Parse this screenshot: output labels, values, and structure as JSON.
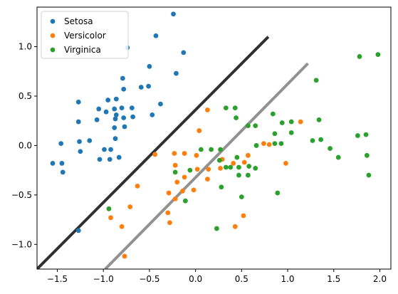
{
  "chart_data": {
    "type": "scatter",
    "title": "",
    "xlabel": "",
    "ylabel": "",
    "xlim": [
      -1.72,
      2.12
    ],
    "ylim": [
      -1.25,
      1.4
    ],
    "xticks": [
      "−1.5",
      "−1.0",
      "−0.5",
      "0.0",
      "0.5",
      "1.0",
      "1.5",
      "2.0"
    ],
    "xtick_values": [
      -1.5,
      -1.0,
      -0.5,
      0.0,
      0.5,
      1.0,
      1.5,
      2.0
    ],
    "yticks": [
      "−1.0",
      "−0.5",
      "0.0",
      "0.5",
      "1.0"
    ],
    "ytick_values": [
      -1.0,
      -0.5,
      0.0,
      0.5,
      1.0
    ],
    "grid": false,
    "legend_position": "top-left",
    "series": [
      {
        "name": "Setosa",
        "color": "#1f77b4",
        "points": [
          [
            -0.24,
            1.33
          ],
          [
            -0.43,
            1.11
          ],
          [
            -0.74,
            0.99
          ],
          [
            -0.13,
            0.94
          ],
          [
            -0.5,
            0.8
          ],
          [
            -0.21,
            0.73
          ],
          [
            -0.79,
            0.68
          ],
          [
            -0.95,
            0.46
          ],
          [
            -0.86,
            0.47
          ],
          [
            -0.59,
            0.59
          ],
          [
            -0.51,
            0.6
          ],
          [
            -0.78,
            0.57
          ],
          [
            -1.05,
            0.37
          ],
          [
            -0.88,
            0.37
          ],
          [
            -0.8,
            0.38
          ],
          [
            -0.69,
            0.38
          ],
          [
            -0.38,
            0.42
          ],
          [
            -0.97,
            0.34
          ],
          [
            -0.47,
            0.31
          ],
          [
            -1.27,
            0.44
          ],
          [
            -0.86,
            0.31
          ],
          [
            -0.78,
            0.28
          ],
          [
            -0.68,
            0.29
          ],
          [
            -1.27,
            0.24
          ],
          [
            -1.07,
            0.26
          ],
          [
            -0.87,
            0.27
          ],
          [
            -0.88,
            0.18
          ],
          [
            -0.77,
            0.19
          ],
          [
            -0.87,
            0.07
          ],
          [
            -1.26,
            0.04
          ],
          [
            -1.15,
            0.05
          ],
          [
            -1.46,
            0.02
          ],
          [
            -0.99,
            -0.04
          ],
          [
            -0.92,
            -0.04
          ],
          [
            -1.25,
            -0.06
          ],
          [
            -1.04,
            -0.14
          ],
          [
            -0.93,
            -0.14
          ],
          [
            -0.83,
            -0.12
          ],
          [
            -1.55,
            -0.18
          ],
          [
            -1.45,
            -0.18
          ],
          [
            -1.44,
            -0.27
          ],
          [
            -1.27,
            -0.86
          ]
        ]
      },
      {
        "name": "Versicolor",
        "color": "#ff7f0e",
        "points": [
          [
            0.13,
            0.36
          ],
          [
            1.14,
            0.24
          ],
          [
            0.04,
            0.15
          ],
          [
            0.8,
            0.01
          ],
          [
            0.74,
            0.02
          ],
          [
            -0.44,
            -0.09
          ],
          [
            -0.23,
            -0.08
          ],
          [
            -0.12,
            -0.08
          ],
          [
            0.01,
            -0.1
          ],
          [
            0.29,
            -0.14
          ],
          [
            0.53,
            -0.17
          ],
          [
            0.41,
            -0.18
          ],
          [
            0.57,
            -0.1
          ],
          [
            -0.22,
            -0.2
          ],
          [
            0.02,
            -0.24
          ],
          [
            0.14,
            -0.24
          ],
          [
            0.27,
            -0.23
          ],
          [
            0.98,
            -0.18
          ],
          [
            -0.12,
            -0.32
          ],
          [
            0.13,
            -0.34
          ],
          [
            -0.2,
            -0.37
          ],
          [
            -0.63,
            -0.41
          ],
          [
            -0.02,
            -0.45
          ],
          [
            -0.14,
            -0.46
          ],
          [
            -0.29,
            -0.48
          ],
          [
            -0.22,
            -0.54
          ],
          [
            -0.71,
            -0.62
          ],
          [
            -0.3,
            -0.68
          ],
          [
            -0.92,
            -0.73
          ],
          [
            -0.28,
            -0.78
          ],
          [
            -0.8,
            -0.82
          ],
          [
            0.43,
            -0.82
          ],
          [
            0.52,
            -0.71
          ],
          [
            -0.77,
            -1.12
          ]
        ]
      },
      {
        "name": "Virginica",
        "color": "#2ca02c",
        "points": [
          [
            1.98,
            0.92
          ],
          [
            1.78,
            0.9
          ],
          [
            1.31,
            0.66
          ],
          [
            0.33,
            0.38
          ],
          [
            0.43,
            0.38
          ],
          [
            0.84,
            0.32
          ],
          [
            0.44,
            0.28
          ],
          [
            1.34,
            0.26
          ],
          [
            0.94,
            0.23
          ],
          [
            1.04,
            0.24
          ],
          [
            0.57,
            0.2
          ],
          [
            0.65,
            0.2
          ],
          [
            0.86,
            0.12
          ],
          [
            1.04,
            0.13
          ],
          [
            1.27,
            0.05
          ],
          [
            1.36,
            0.06
          ],
          [
            1.76,
            0.1
          ],
          [
            1.85,
            0.11
          ],
          [
            0.66,
            0.0
          ],
          [
            0.86,
            0.02
          ],
          [
            0.93,
            0.02
          ],
          [
            1.46,
            -0.03
          ],
          [
            0.06,
            -0.04
          ],
          [
            0.17,
            -0.04
          ],
          [
            0.27,
            -0.04
          ],
          [
            1.86,
            -0.1
          ],
          [
            1.55,
            -0.12
          ],
          [
            0.26,
            -0.15
          ],
          [
            0.45,
            -0.12
          ],
          [
            0.38,
            -0.22
          ],
          [
            0.47,
            -0.22
          ],
          [
            0.58,
            -0.21
          ],
          [
            0.65,
            -0.23
          ],
          [
            0.33,
            -0.22
          ],
          [
            -0.22,
            -0.27
          ],
          [
            -0.06,
            -0.25
          ],
          [
            0.47,
            -0.3
          ],
          [
            0.57,
            -0.3
          ],
          [
            1.88,
            -0.3
          ],
          [
            0.28,
            -0.42
          ],
          [
            0.89,
            -0.48
          ],
          [
            -0.11,
            -0.56
          ],
          [
            0.5,
            -0.52
          ],
          [
            0.23,
            -0.84
          ],
          [
            -0.94,
            -0.64
          ]
        ]
      }
    ],
    "lines": [
      {
        "color": "#1a1a1a",
        "opacity": 0.9,
        "points": [
          [
            -1.72,
            -1.25
          ],
          [
            0.79,
            1.1
          ]
        ]
      },
      {
        "color": "#7f7f7f",
        "opacity": 0.85,
        "points": [
          [
            -0.98,
            -1.25
          ],
          [
            1.22,
            0.83
          ]
        ]
      }
    ]
  }
}
